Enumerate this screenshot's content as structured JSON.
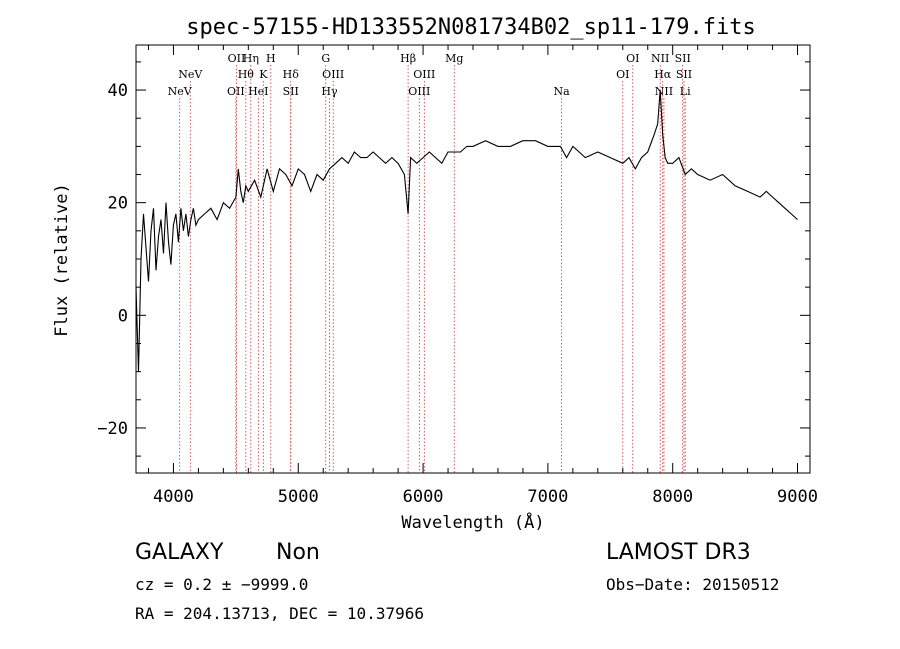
{
  "chart_data": {
    "type": "line",
    "title": "spec-57155-HD133552N081734B02_sp11-179.fits",
    "xlabel": "Wavelength (Å)",
    "ylabel": "Flux (relative)",
    "xlim": [
      3700,
      9100
    ],
    "ylim": [
      -28,
      48
    ],
    "xticks": [
      4000,
      5000,
      6000,
      7000,
      8000,
      9000
    ],
    "xtick_labels": [
      "4000",
      "5000",
      "6000",
      "7000",
      "8000",
      "9000"
    ],
    "yticks": [
      -20,
      0,
      20,
      40
    ],
    "ytick_labels": [
      "−20",
      "0",
      "20",
      "40"
    ],
    "grid": false,
    "line_color": "#000000",
    "marker_color": "#cc3333",
    "spectral_lines": [
      {
        "label": "NeV",
        "x": 4050,
        "row": 3
      },
      {
        "label": "NeV",
        "x": 4135,
        "row": 2
      },
      {
        "label": "OII",
        "x": 4500,
        "row": 3
      },
      {
        "label": "OII",
        "x": 4505,
        "row": 1
      },
      {
        "label": "Hθ",
        "x": 4580,
        "row": 2
      },
      {
        "label": "Hη",
        "x": 4620,
        "row": 1
      },
      {
        "label": "HeI",
        "x": 4680,
        "row": 3
      },
      {
        "label": "K",
        "x": 4720,
        "row": 2
      },
      {
        "label": "H",
        "x": 4780,
        "row": 1
      },
      {
        "label": "Hδ",
        "x": 4940,
        "row": 2
      },
      {
        "label": "SII",
        "x": 4940,
        "row": 3
      },
      {
        "label": "G",
        "x": 5220,
        "row": 1
      },
      {
        "label": "Hγ",
        "x": 5250,
        "row": 3
      },
      {
        "label": "OIII",
        "x": 5280,
        "row": 2
      },
      {
        "label": "Hβ",
        "x": 5880,
        "row": 1
      },
      {
        "label": "OIII",
        "x": 5970,
        "row": 3
      },
      {
        "label": "OIII",
        "x": 6010,
        "row": 2
      },
      {
        "label": "Mg",
        "x": 6250,
        "row": 1
      },
      {
        "label": "Na",
        "x": 7110,
        "row": 3
      },
      {
        "label": "OI",
        "x": 7600,
        "row": 2
      },
      {
        "label": "OI",
        "x": 7680,
        "row": 1
      },
      {
        "label": "NII",
        "x": 7900,
        "row": 1
      },
      {
        "label": "Hα",
        "x": 7920,
        "row": 2
      },
      {
        "label": "NII",
        "x": 7930,
        "row": 3
      },
      {
        "label": "SII",
        "x": 8080,
        "row": 1
      },
      {
        "label": "SII",
        "x": 8090,
        "row": 2
      },
      {
        "label": "Li",
        "x": 8100,
        "row": 3
      }
    ],
    "series": [
      {
        "values_x": [
          3700,
          3720,
          3740,
          3760,
          3780,
          3800,
          3820,
          3840,
          3860,
          3880,
          3900,
          3920,
          3940,
          3960,
          3980,
          4000,
          4020,
          4040,
          4060,
          4080,
          4100,
          4120,
          4140,
          4160,
          4180,
          4200,
          4250,
          4300,
          4350,
          4400,
          4450,
          4500,
          4520,
          4540,
          4560,
          4580,
          4600,
          4650,
          4700,
          4750,
          4800,
          4850,
          4900,
          4950,
          5000,
          5050,
          5100,
          5150,
          5200,
          5250,
          5300,
          5350,
          5400,
          5450,
          5500,
          5550,
          5600,
          5650,
          5700,
          5750,
          5800,
          5850,
          5880,
          5900,
          5950,
          6000,
          6050,
          6100,
          6150,
          6200,
          6250,
          6300,
          6350,
          6400,
          6500,
          6600,
          6700,
          6800,
          6900,
          7000,
          7100,
          7150,
          7200,
          7250,
          7300,
          7400,
          7500,
          7600,
          7650,
          7700,
          7750,
          7800,
          7850,
          7880,
          7900,
          7920,
          7940,
          7960,
          8000,
          8050,
          8100,
          8150,
          8200,
          8300,
          8400,
          8450,
          8500,
          8600,
          8700,
          8750,
          8800,
          8850,
          8900,
          8950,
          9000
        ],
        "values_y": [
          5,
          -10,
          10,
          18,
          12,
          6,
          15,
          19,
          8,
          14,
          17,
          11,
          20,
          13,
          9,
          16,
          18,
          13,
          19,
          15,
          18,
          14,
          17,
          19,
          16,
          17,
          18,
          19,
          17,
          20,
          19,
          21,
          26,
          22,
          20,
          23,
          22,
          24,
          21,
          26,
          22,
          26,
          25,
          23,
          26,
          25,
          22,
          25,
          24,
          26,
          27,
          28,
          27,
          29,
          28,
          28,
          29,
          28,
          27,
          28,
          27,
          25,
          18,
          28,
          27,
          28,
          29,
          28,
          27,
          29,
          29,
          29,
          30,
          30,
          31,
          30,
          30,
          31,
          31,
          30,
          30,
          28,
          30,
          29,
          28,
          29,
          28,
          27,
          28,
          26,
          28,
          29,
          32,
          34,
          40,
          32,
          28,
          27,
          27,
          28,
          25,
          26,
          25,
          24,
          25,
          24,
          23,
          22,
          21,
          22,
          21,
          20,
          19,
          18,
          17
        ]
      }
    ]
  },
  "info": {
    "object_type": "GALAXY",
    "object_subtype": "Non",
    "survey": "LAMOST DR3",
    "cz_text": "cz = 0.2 ± −9999.0",
    "obs_date_text": "Obs−Date: 20150512",
    "radec_text": "RA = 204.13713, DEC =  10.37966"
  }
}
